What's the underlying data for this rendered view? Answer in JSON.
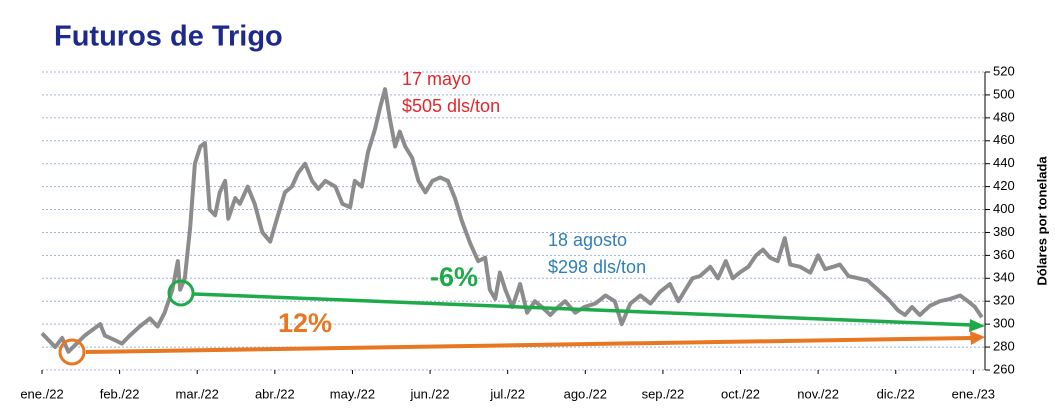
{
  "chart_data": {
    "type": "line",
    "title": "Futuros de Trigo",
    "y_label": "Dólares por tonelada",
    "annotations": [
      {
        "text": "17 mayo",
        "color": "#e3262b"
      },
      {
        "text": "$505 dls/ton",
        "color": "#e3262b"
      },
      {
        "text": "18 agosto",
        "color": "#2e7fb8"
      },
      {
        "text": "$298 dls/ton",
        "color": "#2e7fb8"
      },
      {
        "text": "-6%",
        "color": "#1faa4a"
      },
      {
        "text": "12%",
        "color": "#e87722"
      }
    ],
    "x": [
      0,
      0.1,
      0.17,
      0.26,
      0.34,
      0.43,
      0.55,
      0.75,
      0.81,
      0.94,
      1.03,
      1.13,
      1.26,
      1.39,
      1.49,
      1.58,
      1.68,
      1.75,
      1.78,
      1.84,
      1.91,
      1.97,
      2.04,
      2.1,
      2.16,
      2.23,
      2.29,
      2.36,
      2.4,
      2.49,
      2.55,
      2.65,
      2.74,
      2.84,
      2.94,
      3.04,
      3.13,
      3.22,
      3.3,
      3.39,
      3.48,
      3.56,
      3.65,
      3.78,
      3.87,
      3.97,
      4.03,
      4.12,
      4.2,
      4.29,
      4.36,
      4.42,
      4.48,
      4.55,
      4.61,
      4.68,
      4.77,
      4.85,
      4.94,
      5.03,
      5.13,
      5.23,
      5.32,
      5.41,
      5.52,
      5.62,
      5.71,
      5.77,
      5.84,
      5.9,
      5.97,
      6.06,
      6.16,
      6.25,
      6.35,
      6.44,
      6.55,
      6.65,
      6.74,
      6.87,
      6.99,
      7.13,
      7.26,
      7.38,
      7.47,
      7.58,
      7.71,
      7.84,
      7.96,
      8.09,
      8.2,
      8.29,
      8.38,
      8.48,
      8.61,
      8.71,
      8.81,
      8.9,
      8.99,
      9.1,
      9.2,
      9.29,
      9.38,
      9.48,
      9.57,
      9.64,
      9.77,
      9.9,
      10.0,
      10.09,
      10.19,
      10.28,
      10.39,
      10.52,
      10.64,
      10.77,
      10.9,
      11.03,
      11.12,
      11.21,
      11.31,
      11.44,
      11.57,
      11.7,
      11.83,
      11.93,
      12.02,
      12.11
    ],
    "series": [
      {
        "color": "#8c8c8c",
        "values": [
          292,
          285,
          280,
          288,
          276,
          282,
          290,
          300,
          290,
          286,
          283,
          290,
          298,
          305,
          298,
          310,
          330,
          355,
          330,
          340,
          385,
          440,
          455,
          458,
          400,
          395,
          415,
          425,
          392,
          410,
          405,
          420,
          405,
          380,
          372,
          395,
          415,
          420,
          432,
          440,
          425,
          418,
          425,
          420,
          405,
          402,
          425,
          420,
          450,
          470,
          490,
          505,
          480,
          455,
          468,
          455,
          445,
          425,
          415,
          425,
          428,
          425,
          410,
          390,
          370,
          355,
          358,
          330,
          322,
          345,
          330,
          315,
          335,
          310,
          320,
          315,
          308,
          315,
          320,
          310,
          315,
          318,
          325,
          320,
          300,
          318,
          325,
          318,
          328,
          335,
          320,
          330,
          340,
          342,
          350,
          340,
          355,
          340,
          345,
          350,
          360,
          365,
          358,
          355,
          375,
          352,
          350,
          345,
          360,
          348,
          350,
          352,
          342,
          340,
          338,
          330,
          322,
          312,
          308,
          315,
          308,
          316,
          320,
          322,
          325,
          320,
          315,
          306
        ]
      }
    ],
    "xlim": [
      0,
      12.15
    ],
    "xticks": [
      {
        "value": 0,
        "label": "ene./22"
      },
      {
        "value": 1,
        "label": "feb./22"
      },
      {
        "value": 2,
        "label": "mar./22"
      },
      {
        "value": 3,
        "label": "abr./22"
      },
      {
        "value": 4,
        "label": "may./22"
      },
      {
        "value": 5,
        "label": "jun./22"
      },
      {
        "value": 6,
        "label": "jul./22"
      },
      {
        "value": 7,
        "label": "ago./22"
      },
      {
        "value": 8,
        "label": "sep./22"
      },
      {
        "value": 9,
        "label": "oct./22"
      },
      {
        "value": 10,
        "label": "nov./22"
      },
      {
        "value": 11,
        "label": "dic./22"
      },
      {
        "value": 12,
        "label": "ene./23"
      }
    ],
    "ylim": [
      260,
      520
    ],
    "yticks": [
      260,
      280,
      300,
      320,
      340,
      360,
      380,
      400,
      420,
      440,
      460,
      480,
      500,
      520
    ],
    "grid": true
  }
}
